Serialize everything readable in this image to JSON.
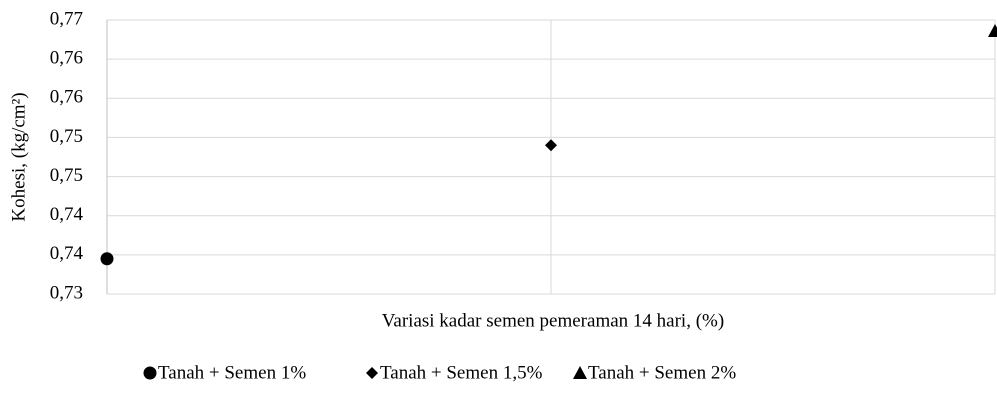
{
  "chart_data": {
    "type": "scatter",
    "x_label": "Variasi kadar semen pemeraman 14 hari, (%)",
    "y_label": "Kohesi, (kg/cm²)",
    "categories": [
      null,
      null,
      null
    ],
    "series": [
      {
        "name": "Tanah + Semen 1%",
        "color": "#000000",
        "marker": "circle",
        "values": [
          0.7345,
          null,
          null
        ]
      },
      {
        "name": "Tanah + Semen 1,5%",
        "color": "#000000",
        "marker": "diamond",
        "values": [
          null,
          0.749,
          null
        ]
      },
      {
        "name": "Tanah + Semen 2%",
        "color": "#000000",
        "marker": "triangle",
        "values": [
          null,
          null,
          0.7636
        ]
      }
    ],
    "ylim": [
      0.73,
      0.765
    ],
    "yticks": [
      {
        "value": 0.73,
        "label": "0,73"
      },
      {
        "value": 0.735,
        "label": "0,74"
      },
      {
        "value": 0.74,
        "label": "0,74"
      },
      {
        "value": 0.745,
        "label": "0,75"
      },
      {
        "value": 0.75,
        "label": "0,75"
      },
      {
        "value": 0.755,
        "label": "0,76"
      },
      {
        "value": 0.76,
        "label": "0,76"
      },
      {
        "value": 0.765,
        "label": "0,77"
      }
    ],
    "grid": true,
    "legend": "bottom"
  }
}
